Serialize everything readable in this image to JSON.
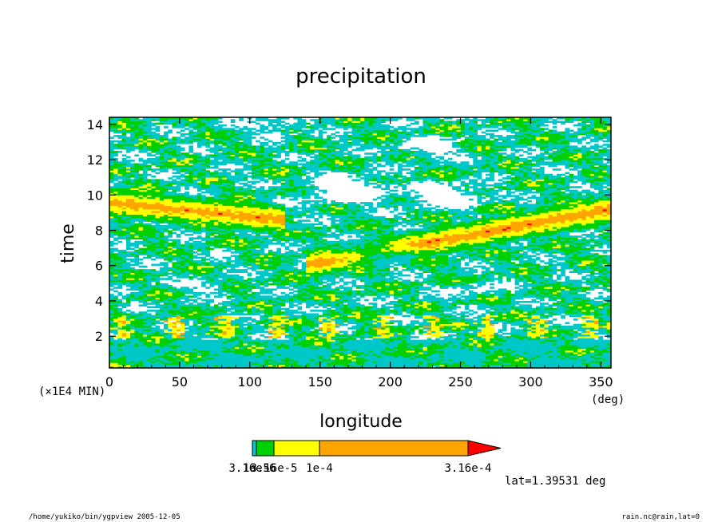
{
  "chart_data": {
    "type": "heatmap",
    "title": "precipitation",
    "xlabel": "longitude",
    "ylabel": "time",
    "x_unit": "(deg)",
    "y_unit": "(×1E4 MIN)",
    "xlim": [
      0,
      357.2
    ],
    "ylim": [
      0.2,
      14.4
    ],
    "x_ticks": [
      0,
      50,
      100,
      150,
      200,
      250,
      300,
      350
    ],
    "y_ticks": [
      2,
      4,
      6,
      8,
      10,
      12,
      14
    ],
    "grid": false,
    "colorbar": {
      "orientation": "horizontal",
      "tick_labels_visible": [
        "3.16e-6",
        "1e-5",
        "3.16e-5",
        "1e-4",
        "3.16e-4"
      ],
      "bins": [
        {
          "from": 3.16e-06,
          "to": 1e-05,
          "color": "#00c8c8"
        },
        {
          "from": 1e-05,
          "to": 3.16e-05,
          "color": "#00d000"
        },
        {
          "from": 3.16e-05,
          "to": 0.0001,
          "color": "#ffff00"
        },
        {
          "from": 0.0001,
          "to": 0.000316,
          "color": "#ffa500"
        },
        {
          "from": 0.000316,
          "to": null,
          "color": "#ff0000"
        }
      ]
    },
    "features": [
      {
        "description": "eastward propagating band",
        "lon_from": 150,
        "lon_to": 357,
        "t_from": 6.2,
        "t_to": 9.2
      },
      {
        "description": "westward band",
        "lon_from": 0,
        "lon_to": 110,
        "t_from": 9.6,
        "t_to": 8.7
      },
      {
        "description": "near-uniform light rain",
        "t_from": 0.2,
        "t_to": 1.8
      }
    ]
  },
  "annotations": {
    "lat": "lat=1.39531 deg",
    "path_date": "/home/yukiko/bin/ygpview  2005-12-05",
    "file_var": "rain.nc@rain,lat=0"
  },
  "palette": {
    "cyan": "#00c8c8",
    "green": "#00d000",
    "yellow": "#ffff00",
    "orange": "#ffa500",
    "red": "#ff0000"
  }
}
